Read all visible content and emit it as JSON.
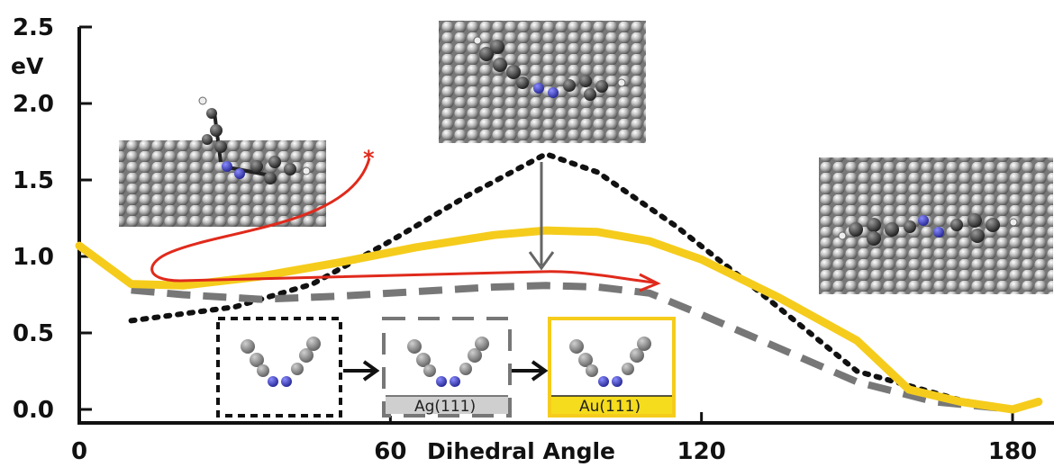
{
  "chart_data": {
    "type": "line",
    "xlabel": "Dihedral Angle",
    "ylabel": "eV",
    "xlim": [
      0,
      185
    ],
    "ylim": [
      -0.05,
      2.55
    ],
    "x_ticks": [
      {
        "value": 0,
        "label": "0"
      },
      {
        "value": 60,
        "label": "60"
      },
      {
        "value": 120,
        "label": "120"
      },
      {
        "value": 180,
        "label": "180"
      }
    ],
    "y_ticks": [
      {
        "value": 0.0,
        "label": "0.0"
      },
      {
        "value": 0.5,
        "label": "0.5"
      },
      {
        "value": 1.0,
        "label": "1.0"
      },
      {
        "value": 1.5,
        "label": "1.5"
      },
      {
        "value": 2.0,
        "label": "2.0"
      },
      {
        "value": 2.5,
        "label": "2.5"
      }
    ],
    "series": [
      {
        "style": "dotted",
        "color": "#111111",
        "x": [
          10,
          30,
          45,
          60,
          75,
          90,
          100,
          115,
          130,
          150,
          170,
          180
        ],
        "y": [
          0.58,
          0.67,
          0.82,
          1.1,
          1.4,
          1.67,
          1.55,
          1.2,
          0.8,
          0.25,
          0.06,
          0.0
        ]
      },
      {
        "style": "dashed",
        "color": "#777777",
        "x": [
          10,
          20,
          35,
          50,
          65,
          80,
          90,
          100,
          110,
          120,
          135,
          150,
          165,
          180
        ],
        "y": [
          0.78,
          0.75,
          0.72,
          0.74,
          0.77,
          0.8,
          0.81,
          0.8,
          0.76,
          0.62,
          0.4,
          0.18,
          0.05,
          0.0
        ]
      },
      {
        "style": "solid",
        "color": "#f5cc1c",
        "x": [
          0,
          10,
          20,
          35,
          50,
          65,
          80,
          90,
          100,
          110,
          120,
          135,
          150,
          160,
          170,
          180,
          185
        ],
        "y": [
          1.07,
          0.82,
          0.81,
          0.87,
          0.96,
          1.06,
          1.14,
          1.17,
          1.16,
          1.1,
          0.98,
          0.73,
          0.45,
          0.13,
          0.05,
          0.0,
          0.05
        ]
      }
    ],
    "legend": [
      {
        "style": "dotted",
        "label": ""
      },
      {
        "style": "dashed",
        "label": "Ag(111)"
      },
      {
        "style": "solid",
        "label": "Au(111)"
      }
    ],
    "annotations": [
      {
        "type": "red-arrow-path"
      },
      {
        "type": "gray-arrow",
        "from_x": 90,
        "from_y": 1.6,
        "to_x": 90,
        "to_y": 0.9
      }
    ],
    "insets": [
      {
        "name": "molecule-upright-on-surface"
      },
      {
        "name": "molecule-tilted-on-surface"
      },
      {
        "name": "molecule-flat-on-surface"
      }
    ]
  }
}
